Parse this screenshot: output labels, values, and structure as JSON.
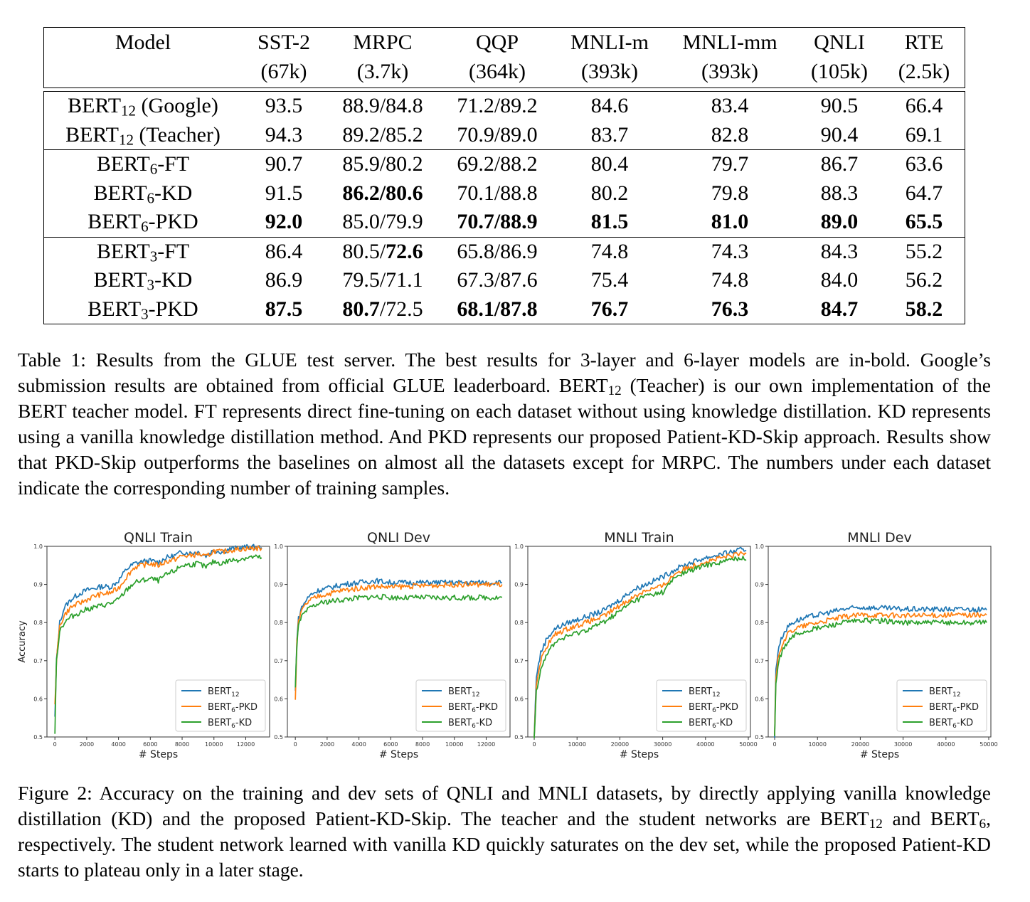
{
  "table": {
    "header": {
      "model_label": "Model",
      "columns": [
        {
          "name": "SST-2",
          "size": "(67k)"
        },
        {
          "name": "MRPC",
          "size": "(3.7k)"
        },
        {
          "name": "QQP",
          "size": "(364k)"
        },
        {
          "name": "MNLI-m",
          "size": "(393k)"
        },
        {
          "name": "MNLI-mm",
          "size": "(393k)"
        },
        {
          "name": "QNLI",
          "size": "(105k)"
        },
        {
          "name": "RTE",
          "size": "(2.5k)"
        }
      ]
    },
    "groups": [
      [
        {
          "base": "BERT",
          "sub": "12",
          "suffix": " (Google)",
          "cells": [
            {
              "v": "93.5"
            },
            {
              "v": "88.9/84.8"
            },
            {
              "v": "71.2/89.2"
            },
            {
              "v": "84.6"
            },
            {
              "v": "83.4"
            },
            {
              "v": "90.5"
            },
            {
              "v": "66.4"
            }
          ]
        },
        {
          "base": "BERT",
          "sub": "12",
          "suffix": " (Teacher)",
          "cells": [
            {
              "v": "94.3"
            },
            {
              "v": "89.2/85.2"
            },
            {
              "v": "70.9/89.0"
            },
            {
              "v": "83.7"
            },
            {
              "v": "82.8"
            },
            {
              "v": "90.4"
            },
            {
              "v": "69.1"
            }
          ]
        }
      ],
      [
        {
          "base": "BERT",
          "sub": "6",
          "suffix": "-FT",
          "cells": [
            {
              "v": "90.7"
            },
            {
              "v": "85.9/80.2"
            },
            {
              "v": "69.2/88.2"
            },
            {
              "v": "80.4"
            },
            {
              "v": "79.7"
            },
            {
              "v": "86.7"
            },
            {
              "v": "63.6"
            }
          ]
        },
        {
          "base": "BERT",
          "sub": "6",
          "suffix": "-KD",
          "cells": [
            {
              "v": "91.5"
            },
            {
              "v": "86.2/80.6",
              "bold": true
            },
            {
              "v": "70.1/88.8"
            },
            {
              "v": "80.2"
            },
            {
              "v": "79.8"
            },
            {
              "v": "88.3"
            },
            {
              "v": "64.7"
            }
          ]
        },
        {
          "base": "BERT",
          "sub": "6",
          "suffix": "-PKD",
          "cells": [
            {
              "v": "92.0",
              "bold": true
            },
            {
              "v": "85.0/79.9"
            },
            {
              "v": "70.7/88.9",
              "bold": true
            },
            {
              "v": "81.5",
              "bold": true
            },
            {
              "v": "81.0",
              "bold": true
            },
            {
              "v": "89.0",
              "bold": true
            },
            {
              "v": "65.5",
              "bold": true
            }
          ]
        }
      ],
      [
        {
          "base": "BERT",
          "sub": "3",
          "suffix": "-FT",
          "cells": [
            {
              "v": "86.4"
            },
            {
              "parts": [
                {
                  "t": "80.5/"
                },
                {
                  "t": "72.6",
                  "bold": true
                }
              ]
            },
            {
              "v": "65.8/86.9"
            },
            {
              "v": "74.8"
            },
            {
              "v": "74.3"
            },
            {
              "v": "84.3"
            },
            {
              "v": "55.2"
            }
          ]
        },
        {
          "base": "BERT",
          "sub": "3",
          "suffix": "-KD",
          "cells": [
            {
              "v": "86.9"
            },
            {
              "v": "79.5/71.1"
            },
            {
              "v": "67.3/87.6"
            },
            {
              "v": "75.4"
            },
            {
              "v": "74.8"
            },
            {
              "v": "84.0"
            },
            {
              "v": "56.2"
            }
          ]
        },
        {
          "base": "BERT",
          "sub": "3",
          "suffix": "-PKD",
          "cells": [
            {
              "v": "87.5",
              "bold": true
            },
            {
              "parts": [
                {
                  "t": "80.7",
                  "bold": true
                },
                {
                  "t": "/72.5"
                }
              ]
            },
            {
              "v": "68.1/87.8",
              "bold": true
            },
            {
              "v": "76.7",
              "bold": true
            },
            {
              "v": "76.3",
              "bold": true
            },
            {
              "v": "84.7",
              "bold": true
            },
            {
              "v": "58.2",
              "bold": true
            }
          ]
        }
      ]
    ]
  },
  "caption1": {
    "part1": "Table 1: Results from the GLUE test server. The best results for 3-layer and 6-layer models are in-bold. Google’s submission results are obtained from official GLUE leaderboard. BERT",
    "sub1": "12",
    "part2": " (Teacher) is our own implementation of the BERT teacher model. FT represents direct fine-tuning on each dataset without using knowledge distillation. KD represents using a vanilla knowledge distillation method. And PKD represents our proposed Patient-KD-Skip approach. Results show that PKD-Skip outperforms the baselines on almost all the datasets except for MRPC. The numbers under each dataset indicate the corresponding number of training samples."
  },
  "caption2": {
    "part1": "Figure 2: Accuracy on the training and dev sets of QNLI and MNLI datasets, by directly applying vanilla knowledge distillation (KD) and the proposed Patient-KD-Skip. The teacher and the student networks are BERT",
    "sub1": "12",
    "part2": " and BERT",
    "sub2": "6",
    "part3": ", respectively. The student network learned with vanilla KD quickly saturates on the dev set, while the proposed Patient-KD starts to plateau only in a later stage."
  },
  "colors": {
    "bert12": "#1f77b4",
    "bert6_pkd": "#ff7f0e",
    "bert6_kd": "#2ca02c"
  },
  "chart_data": [
    {
      "type": "line",
      "title": "QNLI Train",
      "xlabel": "# Steps",
      "ylabel": "Accuracy",
      "xlim": [
        -500,
        13500
      ],
      "ylim": [
        0.5,
        1.0
      ],
      "xticks": [
        0,
        2000,
        4000,
        6000,
        8000,
        10000,
        12000
      ],
      "yticks": [
        0.5,
        0.6,
        0.7,
        0.8,
        0.9,
        1.0
      ],
      "legend_position": "lower-right",
      "grid": false,
      "series": [
        {
          "name": "BERT12",
          "color": "#1f77b4",
          "x": [
            0,
            100,
            300,
            600,
            1000,
            1500,
            2000,
            2500,
            3000,
            3500,
            4000,
            4500,
            5000,
            5500,
            6000,
            6500,
            7000,
            7500,
            8000,
            8500,
            9000,
            9500,
            10000,
            10500,
            11000,
            11500,
            12000,
            12500,
            13000
          ],
          "y": [
            0.55,
            0.7,
            0.8,
            0.84,
            0.86,
            0.875,
            0.885,
            0.89,
            0.895,
            0.893,
            0.91,
            0.94,
            0.955,
            0.96,
            0.962,
            0.958,
            0.97,
            0.975,
            0.985,
            0.982,
            0.985,
            0.975,
            0.99,
            0.985,
            0.993,
            0.995,
            0.998,
            0.998,
            0.997
          ]
        },
        {
          "name": "BERT6-PKD",
          "color": "#ff7f0e",
          "x": [
            0,
            100,
            300,
            600,
            1000,
            1500,
            2000,
            2500,
            3000,
            3500,
            4000,
            4500,
            5000,
            5500,
            6000,
            6500,
            7000,
            7500,
            8000,
            8500,
            9000,
            9500,
            10000,
            10500,
            11000,
            11500,
            12000,
            12500,
            13000
          ],
          "y": [
            0.58,
            0.7,
            0.79,
            0.82,
            0.84,
            0.85,
            0.86,
            0.87,
            0.875,
            0.878,
            0.89,
            0.92,
            0.945,
            0.95,
            0.955,
            0.95,
            0.96,
            0.965,
            0.975,
            0.975,
            0.98,
            0.972,
            0.988,
            0.985,
            0.99,
            0.992,
            0.994,
            0.995,
            0.995
          ]
        },
        {
          "name": "BERT6-KD",
          "color": "#2ca02c",
          "x": [
            0,
            100,
            300,
            600,
            1000,
            1500,
            2000,
            2500,
            3000,
            3500,
            4000,
            4500,
            5000,
            5500,
            6000,
            6500,
            7000,
            7500,
            8000,
            8500,
            9000,
            9500,
            10000,
            10500,
            11000,
            11500,
            12000,
            12500,
            13000
          ],
          "y": [
            0.51,
            0.7,
            0.78,
            0.8,
            0.815,
            0.825,
            0.835,
            0.84,
            0.845,
            0.85,
            0.86,
            0.885,
            0.905,
            0.91,
            0.915,
            0.91,
            0.925,
            0.935,
            0.95,
            0.952,
            0.955,
            0.945,
            0.96,
            0.955,
            0.963,
            0.965,
            0.97,
            0.972,
            0.97
          ]
        }
      ]
    },
    {
      "type": "line",
      "title": "QNLI Dev",
      "xlabel": "# Steps",
      "xlim": [
        -500,
        13500
      ],
      "ylim": [
        0.5,
        1.0
      ],
      "xticks": [
        0,
        2000,
        4000,
        6000,
        8000,
        10000,
        12000
      ],
      "yticks": [
        0.5,
        0.6,
        0.7,
        0.8,
        0.9,
        1.0
      ],
      "legend_position": "lower-right",
      "grid": false,
      "series": [
        {
          "name": "BERT12",
          "color": "#1f77b4",
          "x": [
            0,
            100,
            200,
            400,
            700,
            1000,
            1500,
            2000,
            3000,
            4000,
            5000,
            6000,
            7000,
            8000,
            9000,
            10000,
            11000,
            12000,
            13000
          ],
          "y": [
            0.62,
            0.76,
            0.81,
            0.84,
            0.86,
            0.875,
            0.885,
            0.89,
            0.9,
            0.905,
            0.91,
            0.905,
            0.905,
            0.905,
            0.905,
            0.905,
            0.905,
            0.905,
            0.905
          ]
        },
        {
          "name": "BERT6-PKD",
          "color": "#ff7f0e",
          "x": [
            0,
            100,
            200,
            400,
            700,
            1000,
            1500,
            2000,
            3000,
            4000,
            5000,
            6000,
            7000,
            8000,
            9000,
            10000,
            11000,
            12000,
            13000
          ],
          "y": [
            0.6,
            0.75,
            0.8,
            0.83,
            0.85,
            0.86,
            0.87,
            0.875,
            0.885,
            0.89,
            0.895,
            0.893,
            0.895,
            0.897,
            0.898,
            0.9,
            0.9,
            0.9,
            0.9
          ]
        },
        {
          "name": "BERT6-KD",
          "color": "#2ca02c",
          "x": [
            0,
            100,
            200,
            400,
            700,
            1000,
            1500,
            2000,
            3000,
            4000,
            5000,
            6000,
            7000,
            8000,
            9000,
            10000,
            11000,
            12000,
            13000
          ],
          "y": [
            0.63,
            0.74,
            0.79,
            0.815,
            0.83,
            0.84,
            0.85,
            0.855,
            0.86,
            0.865,
            0.868,
            0.866,
            0.865,
            0.866,
            0.865,
            0.865,
            0.865,
            0.866,
            0.866
          ]
        }
      ]
    },
    {
      "type": "line",
      "title": "MNLI Train",
      "xlabel": "# Steps",
      "xlim": [
        -1500,
        50500
      ],
      "ylim": [
        0.5,
        1.0
      ],
      "xticks": [
        0,
        10000,
        20000,
        30000,
        40000,
        50000
      ],
      "yticks": [
        0.5,
        0.6,
        0.7,
        0.8,
        0.9,
        1.0
      ],
      "legend_position": "lower-right",
      "grid": false,
      "series": [
        {
          "name": "BERT12",
          "color": "#1f77b4",
          "x": [
            0,
            500,
            1500,
            3000,
            5000,
            8000,
            12000,
            16000,
            20000,
            23000,
            26000,
            30000,
            33000,
            36000,
            40000,
            44000,
            48000,
            49500
          ],
          "y": [
            0.5,
            0.66,
            0.72,
            0.76,
            0.785,
            0.8,
            0.815,
            0.83,
            0.86,
            0.885,
            0.9,
            0.92,
            0.94,
            0.955,
            0.97,
            0.98,
            0.99,
            0.99
          ]
        },
        {
          "name": "BERT6-PKD",
          "color": "#ff7f0e",
          "x": [
            0,
            500,
            1500,
            3000,
            5000,
            8000,
            12000,
            16000,
            20000,
            23000,
            26000,
            30000,
            33000,
            36000,
            40000,
            44000,
            48000,
            49500
          ],
          "y": [
            0.5,
            0.64,
            0.7,
            0.74,
            0.77,
            0.785,
            0.8,
            0.815,
            0.845,
            0.865,
            0.885,
            0.895,
            0.93,
            0.945,
            0.96,
            0.97,
            0.98,
            0.98
          ]
        },
        {
          "name": "BERT6-KD",
          "color": "#2ca02c",
          "x": [
            0,
            500,
            1500,
            3000,
            5000,
            8000,
            12000,
            16000,
            20000,
            23000,
            26000,
            30000,
            33000,
            36000,
            40000,
            44000,
            48000,
            49500
          ],
          "y": [
            0.5,
            0.62,
            0.68,
            0.72,
            0.75,
            0.765,
            0.78,
            0.8,
            0.83,
            0.855,
            0.87,
            0.88,
            0.92,
            0.935,
            0.95,
            0.96,
            0.97,
            0.965
          ]
        }
      ]
    },
    {
      "type": "line",
      "title": "MNLI Dev",
      "xlabel": "# Steps",
      "xlim": [
        -1500,
        50500
      ],
      "ylim": [
        0.5,
        1.0
      ],
      "xticks": [
        0,
        10000,
        20000,
        30000,
        40000,
        50000
      ],
      "yticks": [
        0.5,
        0.6,
        0.7,
        0.8,
        0.9,
        1.0
      ],
      "legend_position": "lower-right",
      "grid": false,
      "series": [
        {
          "name": "BERT12",
          "color": "#1f77b4",
          "x": [
            0,
            300,
            1000,
            2000,
            3500,
            5000,
            8000,
            12000,
            16000,
            20000,
            25000,
            30000,
            35000,
            40000,
            45000,
            49500
          ],
          "y": [
            0.5,
            0.68,
            0.74,
            0.77,
            0.795,
            0.805,
            0.815,
            0.825,
            0.835,
            0.84,
            0.838,
            0.835,
            0.835,
            0.835,
            0.835,
            0.833
          ]
        },
        {
          "name": "BERT6-PKD",
          "color": "#ff7f0e",
          "x": [
            0,
            300,
            1000,
            2000,
            3500,
            5000,
            8000,
            12000,
            16000,
            20000,
            25000,
            30000,
            35000,
            40000,
            45000,
            49500
          ],
          "y": [
            0.5,
            0.66,
            0.72,
            0.75,
            0.775,
            0.785,
            0.795,
            0.805,
            0.815,
            0.82,
            0.82,
            0.818,
            0.818,
            0.82,
            0.82,
            0.82
          ]
        },
        {
          "name": "BERT6-KD",
          "color": "#2ca02c",
          "x": [
            0,
            300,
            1000,
            2000,
            3500,
            5000,
            8000,
            12000,
            16000,
            20000,
            25000,
            30000,
            35000,
            40000,
            45000,
            49500
          ],
          "y": [
            0.5,
            0.64,
            0.7,
            0.73,
            0.755,
            0.77,
            0.78,
            0.79,
            0.8,
            0.805,
            0.805,
            0.8,
            0.8,
            0.8,
            0.8,
            0.8
          ]
        }
      ]
    }
  ]
}
